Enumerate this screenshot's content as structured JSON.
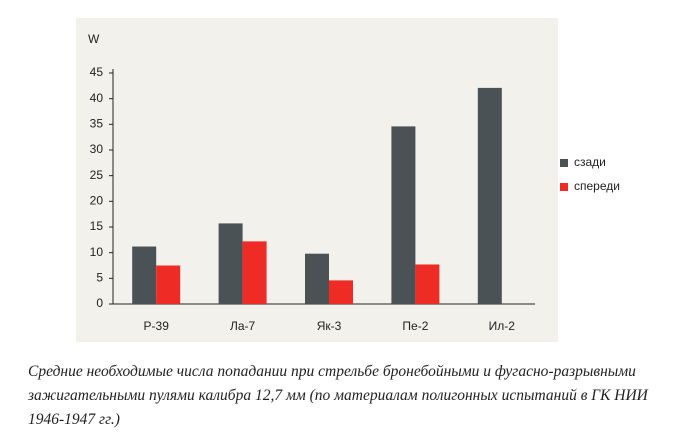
{
  "chart_data": {
    "type": "bar",
    "y_label": "W",
    "categories": [
      "Р-39",
      "Ла-7",
      "Як-3",
      "Пе-2",
      "Ил-2"
    ],
    "series": [
      {
        "name": "сзади",
        "color": "#4b5256",
        "values": [
          11.2,
          15.7,
          9.8,
          34.6,
          42.1
        ]
      },
      {
        "name": "спереди",
        "color": "#ee2b24",
        "values": [
          7.5,
          12.2,
          4.6,
          7.7,
          null
        ]
      }
    ],
    "ylim": [
      0,
      45
    ],
    "yticks": [
      0,
      5,
      10,
      15,
      20,
      25,
      30,
      35,
      40,
      45
    ],
    "grid": false,
    "legend": "right"
  },
  "caption": "Средние необходимые числа попадании при стрельбе бронебойными и фугасно-разрывными зажигательными пулями калибра 12,7 мм (по материалам полигонных испытаний в ГК НИИ 1946-1947 гг.)"
}
